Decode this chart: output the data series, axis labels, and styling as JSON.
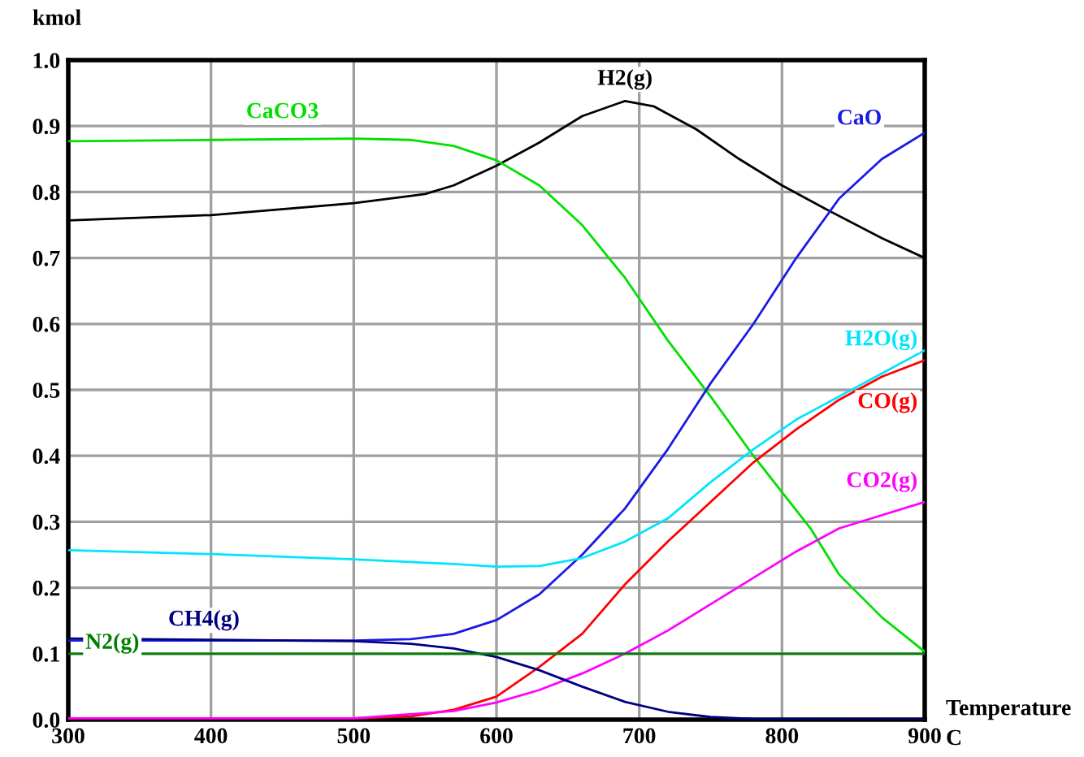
{
  "chart_data": {
    "type": "line",
    "ylabel": "kmol",
    "xlabel": "Temperature\nC",
    "xlim": [
      300,
      900
    ],
    "ylim": [
      0,
      1.0
    ],
    "xticks": [
      300,
      400,
      500,
      600,
      700,
      800,
      900
    ],
    "yticks": [
      {
        "value": 0,
        "label": "0.0"
      },
      0.1,
      0.2,
      0.3,
      0.4,
      0.5,
      0.6,
      0.7,
      0.8,
      0.9,
      {
        "value": 1,
        "label": "1.0"
      }
    ],
    "grid": true,
    "marker": "none",
    "line_style": "solid",
    "series": [
      {
        "name": "H2(g)",
        "color": "#000000",
        "x": [
          300,
          400,
          500,
          550,
          570,
          600,
          630,
          660,
          690,
          710,
          740,
          770,
          800,
          830,
          870,
          900
        ],
        "values": [
          0.757,
          0.765,
          0.783,
          0.797,
          0.81,
          0.84,
          0.875,
          0.915,
          0.938,
          0.93,
          0.895,
          0.85,
          0.81,
          0.775,
          0.73,
          0.7
        ]
      },
      {
        "name": "CaCO3",
        "color": "#00e000",
        "x": [
          300,
          400,
          500,
          540,
          570,
          600,
          630,
          660,
          690,
          720,
          750,
          780,
          800,
          820,
          840,
          870,
          900
        ],
        "values": [
          0.877,
          0.879,
          0.881,
          0.879,
          0.87,
          0.848,
          0.81,
          0.75,
          0.67,
          0.575,
          0.49,
          0.4,
          0.345,
          0.29,
          0.22,
          0.155,
          0.103
        ]
      },
      {
        "name": "CaO",
        "color": "#1a1ae6",
        "x": [
          300,
          500,
          540,
          570,
          600,
          630,
          660,
          690,
          720,
          750,
          780,
          810,
          840,
          870,
          900
        ],
        "values": [
          0.12,
          0.12,
          0.122,
          0.13,
          0.151,
          0.19,
          0.25,
          0.32,
          0.41,
          0.51,
          0.6,
          0.7,
          0.79,
          0.85,
          0.89
        ]
      },
      {
        "name": "H2O(g)",
        "color": "#00e5ff",
        "x": [
          300,
          400,
          500,
          570,
          600,
          630,
          660,
          690,
          720,
          750,
          780,
          810,
          840,
          870,
          900
        ],
        "values": [
          0.257,
          0.251,
          0.243,
          0.236,
          0.232,
          0.233,
          0.245,
          0.27,
          0.305,
          0.36,
          0.41,
          0.455,
          0.49,
          0.525,
          0.56
        ]
      },
      {
        "name": "CO(g)",
        "color": "#ff0000",
        "x": [
          300,
          500,
          540,
          570,
          600,
          630,
          660,
          690,
          720,
          750,
          780,
          810,
          840,
          870,
          900
        ],
        "values": [
          0.002,
          0.002,
          0.005,
          0.015,
          0.035,
          0.08,
          0.13,
          0.205,
          0.27,
          0.33,
          0.39,
          0.44,
          0.485,
          0.52,
          0.545
        ]
      },
      {
        "name": "CO2(g)",
        "color": "#ff00ff",
        "x": [
          300,
          500,
          570,
          600,
          630,
          660,
          690,
          720,
          750,
          780,
          810,
          840,
          870,
          900
        ],
        "values": [
          0.002,
          0.002,
          0.013,
          0.026,
          0.045,
          0.07,
          0.1,
          0.135,
          0.175,
          0.215,
          0.255,
          0.29,
          0.31,
          0.33
        ]
      },
      {
        "name": "CH4(g)",
        "color": "#000080",
        "x": [
          300,
          400,
          500,
          540,
          570,
          600,
          630,
          660,
          690,
          720,
          750,
          780,
          900
        ],
        "values": [
          0.123,
          0.121,
          0.119,
          0.115,
          0.108,
          0.095,
          0.075,
          0.05,
          0.027,
          0.012,
          0.004,
          0.001,
          0
        ]
      },
      {
        "name": "N2(g)",
        "color": "#008000",
        "x": [
          300,
          900
        ],
        "values": [
          0.1,
          0.1
        ]
      }
    ]
  }
}
